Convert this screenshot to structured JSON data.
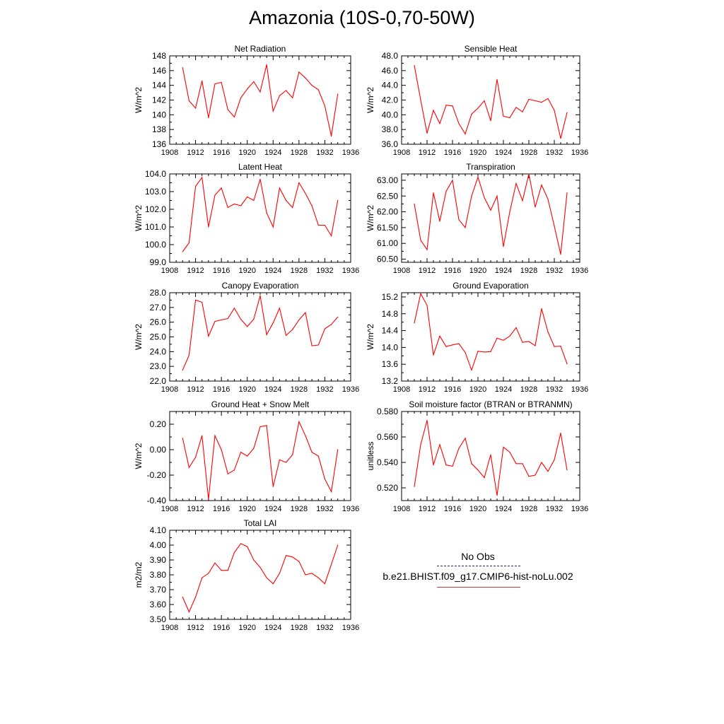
{
  "title": "Amazonia (10S-0,70-50W)",
  "legend": {
    "obs_label": "No Obs",
    "obs_color": "#2a2a6a",
    "model_label": "b.e21.BHIST.f09_g17.CMIP6-hist-noLu.002",
    "model_color": "#e0303a"
  },
  "chart_data": [
    {
      "id": "net-radiation",
      "type": "line",
      "title": "Net Radiation",
      "ylabel": "W/m^2",
      "xlim": [
        1908,
        1936
      ],
      "ylim": [
        136,
        148
      ],
      "xticks": [
        "1908",
        "1912",
        "1916",
        "1920",
        "1924",
        "1928",
        "1932",
        "1936"
      ],
      "yticks": [
        "136",
        "138",
        "140",
        "142",
        "144",
        "146",
        "148"
      ],
      "series": [
        {
          "color": "#ff0000",
          "x": [
            1910,
            1911,
            1912,
            1913,
            1914,
            1915,
            1916,
            1917,
            1918,
            1919,
            1920,
            1921,
            1922,
            1923,
            1924,
            1925,
            1926,
            1927,
            1928,
            1929,
            1930,
            1931,
            1932,
            1933,
            1934
          ],
          "values": [
            146.4,
            141.9,
            140.9,
            144.6,
            139.6,
            144.2,
            144.4,
            140.7,
            139.7,
            142.3,
            143.5,
            144.5,
            143.1,
            146.8,
            140.5,
            142.6,
            143.3,
            142.3,
            145.8,
            145.0,
            144.0,
            143.4,
            141.2,
            137.1,
            142.8
          ]
        }
      ]
    },
    {
      "id": "sensible-heat",
      "type": "line",
      "title": "Sensible Heat",
      "ylabel": "W/m^2",
      "xlim": [
        1908,
        1936
      ],
      "ylim": [
        36,
        48
      ],
      "xticks": [
        "1908",
        "1912",
        "1916",
        "1920",
        "1924",
        "1928",
        "1932",
        "1936"
      ],
      "yticks": [
        "36.0",
        "38.0",
        "40.0",
        "42.0",
        "44.0",
        "46.0",
        "48.0"
      ],
      "series": [
        {
          "color": "#ff0000",
          "x": [
            1910,
            1911,
            1912,
            1913,
            1914,
            1915,
            1916,
            1917,
            1918,
            1919,
            1920,
            1921,
            1922,
            1923,
            1924,
            1925,
            1926,
            1927,
            1928,
            1929,
            1930,
            1931,
            1932,
            1933,
            1934
          ],
          "values": [
            46.7,
            42.0,
            37.5,
            40.6,
            38.8,
            41.3,
            41.2,
            38.8,
            37.4,
            40.1,
            40.9,
            41.9,
            39.2,
            44.8,
            39.8,
            39.6,
            41.0,
            40.4,
            42.1,
            41.9,
            41.7,
            42.2,
            40.6,
            36.8,
            40.3
          ]
        }
      ]
    },
    {
      "id": "latent-heat",
      "type": "line",
      "title": "Latent Heat",
      "ylabel": "W/m^2",
      "xlim": [
        1908,
        1936
      ],
      "ylim": [
        99,
        104
      ],
      "xticks": [
        "1908",
        "1912",
        "1916",
        "1920",
        "1924",
        "1928",
        "1932",
        "1936"
      ],
      "yticks": [
        "99.0",
        "100.0",
        "101.0",
        "102.0",
        "103.0",
        "104.0"
      ],
      "series": [
        {
          "color": "#ff0000",
          "x": [
            1910,
            1911,
            1912,
            1913,
            1914,
            1915,
            1916,
            1917,
            1918,
            1919,
            1920,
            1921,
            1922,
            1923,
            1924,
            1925,
            1926,
            1927,
            1928,
            1929,
            1930,
            1931,
            1932,
            1933,
            1934
          ],
          "values": [
            99.6,
            100.1,
            103.3,
            103.8,
            101.0,
            102.8,
            103.2,
            102.1,
            102.3,
            102.2,
            102.7,
            102.5,
            103.7,
            101.8,
            101.0,
            103.2,
            102.5,
            102.1,
            103.5,
            102.9,
            102.2,
            101.1,
            101.1,
            100.5,
            102.5
          ]
        }
      ]
    },
    {
      "id": "transpiration",
      "type": "line",
      "title": "Transpiration",
      "ylabel": "W/m^2",
      "xlim": [
        1908,
        1936
      ],
      "ylim": [
        60.4,
        63.2
      ],
      "xticks": [
        "1908",
        "1912",
        "1916",
        "1920",
        "1924",
        "1928",
        "1932",
        "1936"
      ],
      "yticks": [
        "60.50",
        "61.00",
        "61.50",
        "62.00",
        "62.50",
        "63.00"
      ],
      "series": [
        {
          "color": "#ff0000",
          "x": [
            1910,
            1911,
            1912,
            1913,
            1914,
            1915,
            1916,
            1917,
            1918,
            1919,
            1920,
            1921,
            1922,
            1923,
            1924,
            1925,
            1926,
            1927,
            1928,
            1929,
            1930,
            1931,
            1932,
            1933,
            1934
          ],
          "values": [
            62.25,
            61.1,
            60.8,
            62.6,
            61.7,
            62.65,
            63.0,
            61.75,
            61.5,
            62.5,
            63.1,
            62.45,
            62.05,
            62.5,
            60.9,
            62.0,
            62.9,
            62.35,
            63.2,
            62.15,
            62.85,
            62.4,
            61.55,
            60.65,
            62.6
          ]
        }
      ]
    },
    {
      "id": "canopy-evaporation",
      "type": "line",
      "title": "Canopy Evaporation",
      "ylabel": "W/m^2",
      "xlim": [
        1908,
        1936
      ],
      "ylim": [
        22,
        28
      ],
      "xticks": [
        "1908",
        "1912",
        "1916",
        "1920",
        "1924",
        "1928",
        "1932",
        "1936"
      ],
      "yticks": [
        "22.0",
        "23.0",
        "24.0",
        "25.0",
        "26.0",
        "27.0",
        "28.0"
      ],
      "series": [
        {
          "color": "#ff0000",
          "x": [
            1910,
            1911,
            1912,
            1913,
            1914,
            1915,
            1916,
            1917,
            1918,
            1919,
            1920,
            1921,
            1922,
            1923,
            1924,
            1925,
            1926,
            1927,
            1928,
            1929,
            1930,
            1931,
            1932,
            1933,
            1934
          ],
          "values": [
            22.75,
            23.75,
            27.5,
            27.35,
            25.05,
            26.05,
            26.15,
            26.25,
            26.95,
            26.2,
            25.7,
            26.2,
            27.8,
            25.15,
            25.95,
            26.95,
            25.1,
            25.5,
            26.15,
            26.65,
            24.4,
            24.45,
            25.55,
            25.85,
            26.35
          ]
        }
      ]
    },
    {
      "id": "ground-evaporation",
      "type": "line",
      "title": "Ground Evaporation",
      "ylabel": "W/m^2",
      "xlim": [
        1908,
        1936
      ],
      "ylim": [
        13.2,
        15.3
      ],
      "xticks": [
        "1908",
        "1912",
        "1916",
        "1920",
        "1924",
        "1928",
        "1932",
        "1936"
      ],
      "yticks": [
        "13.2",
        "13.6",
        "14.0",
        "14.4",
        "14.8",
        "15.2"
      ],
      "series": [
        {
          "color": "#ff0000",
          "x": [
            1910,
            1911,
            1912,
            1913,
            1914,
            1915,
            1916,
            1917,
            1918,
            1919,
            1920,
            1921,
            1922,
            1923,
            1924,
            1925,
            1926,
            1927,
            1928,
            1929,
            1930,
            1931,
            1932,
            1933,
            1934
          ],
          "values": [
            14.58,
            15.28,
            15.0,
            13.82,
            14.27,
            14.02,
            14.06,
            14.09,
            13.88,
            13.46,
            13.91,
            13.89,
            13.9,
            14.22,
            14.17,
            14.27,
            14.47,
            14.12,
            14.14,
            14.04,
            14.92,
            14.37,
            14.02,
            14.03,
            13.61
          ]
        }
      ]
    },
    {
      "id": "ground-heat-snow-melt",
      "type": "line",
      "title": "Ground Heat + Snow Melt",
      "ylabel": "W/m^2",
      "xlim": [
        1908,
        1936
      ],
      "ylim": [
        -0.4,
        0.3
      ],
      "xticks": [
        "1908",
        "1912",
        "1916",
        "1920",
        "1924",
        "1928",
        "1932",
        "1936"
      ],
      "yticks": [
        "-0.40",
        "-0.20",
        "0.00",
        "0.20"
      ],
      "series": [
        {
          "color": "#ff0000",
          "x": [
            1910,
            1911,
            1912,
            1913,
            1914,
            1915,
            1916,
            1917,
            1918,
            1919,
            1920,
            1921,
            1922,
            1923,
            1924,
            1925,
            1926,
            1927,
            1928,
            1929,
            1930,
            1931,
            1932,
            1933,
            1934
          ],
          "values": [
            0.09,
            -0.14,
            -0.06,
            0.11,
            -0.39,
            0.11,
            0.0,
            -0.19,
            -0.16,
            -0.02,
            -0.05,
            0.01,
            0.18,
            0.19,
            -0.29,
            -0.08,
            -0.1,
            -0.04,
            0.22,
            0.11,
            -0.02,
            -0.05,
            -0.23,
            -0.33,
            0.0
          ]
        }
      ]
    },
    {
      "id": "soil-moisture-factor",
      "type": "line",
      "title": "Soil moisture factor (BTRAN or BTRANMN)",
      "ylabel": "unitless",
      "xlim": [
        1908,
        1936
      ],
      "ylim": [
        0.51,
        0.58
      ],
      "xticks": [
        "1908",
        "1912",
        "1916",
        "1920",
        "1924",
        "1928",
        "1932",
        "1936"
      ],
      "yticks": [
        "0.520",
        "0.540",
        "0.560",
        "0.580"
      ],
      "series": [
        {
          "color": "#ff0000",
          "x": [
            1910,
            1911,
            1912,
            1913,
            1914,
            1915,
            1916,
            1917,
            1918,
            1919,
            1920,
            1921,
            1922,
            1923,
            1924,
            1925,
            1926,
            1927,
            1928,
            1929,
            1930,
            1931,
            1932,
            1933,
            1934
          ],
          "values": [
            0.521,
            0.554,
            0.573,
            0.538,
            0.554,
            0.538,
            0.537,
            0.551,
            0.559,
            0.539,
            0.534,
            0.528,
            0.546,
            0.514,
            0.552,
            0.548,
            0.539,
            0.539,
            0.529,
            0.53,
            0.54,
            0.533,
            0.542,
            0.563,
            0.534
          ]
        }
      ]
    },
    {
      "id": "total-lai",
      "type": "line",
      "title": "Total LAI",
      "ylabel": "m2/m2",
      "xlim": [
        1908,
        1936
      ],
      "ylim": [
        3.5,
        4.1
      ],
      "xticks": [
        "1908",
        "1912",
        "1916",
        "1920",
        "1924",
        "1928",
        "1932",
        "1936"
      ],
      "yticks": [
        "3.50",
        "3.60",
        "3.70",
        "3.80",
        "3.90",
        "4.00",
        "4.10"
      ],
      "series": [
        {
          "color": "#ff0000",
          "x": [
            1910,
            1911,
            1912,
            1913,
            1914,
            1915,
            1916,
            1917,
            1918,
            1919,
            1920,
            1921,
            1922,
            1923,
            1924,
            1925,
            1926,
            1927,
            1928,
            1929,
            1930,
            1931,
            1932,
            1933,
            1934
          ],
          "values": [
            3.65,
            3.55,
            3.65,
            3.78,
            3.81,
            3.88,
            3.83,
            3.83,
            3.95,
            4.01,
            3.99,
            3.9,
            3.85,
            3.78,
            3.74,
            3.81,
            3.93,
            3.92,
            3.89,
            3.8,
            3.81,
            3.78,
            3.74,
            3.87,
            4.0
          ]
        }
      ]
    }
  ]
}
